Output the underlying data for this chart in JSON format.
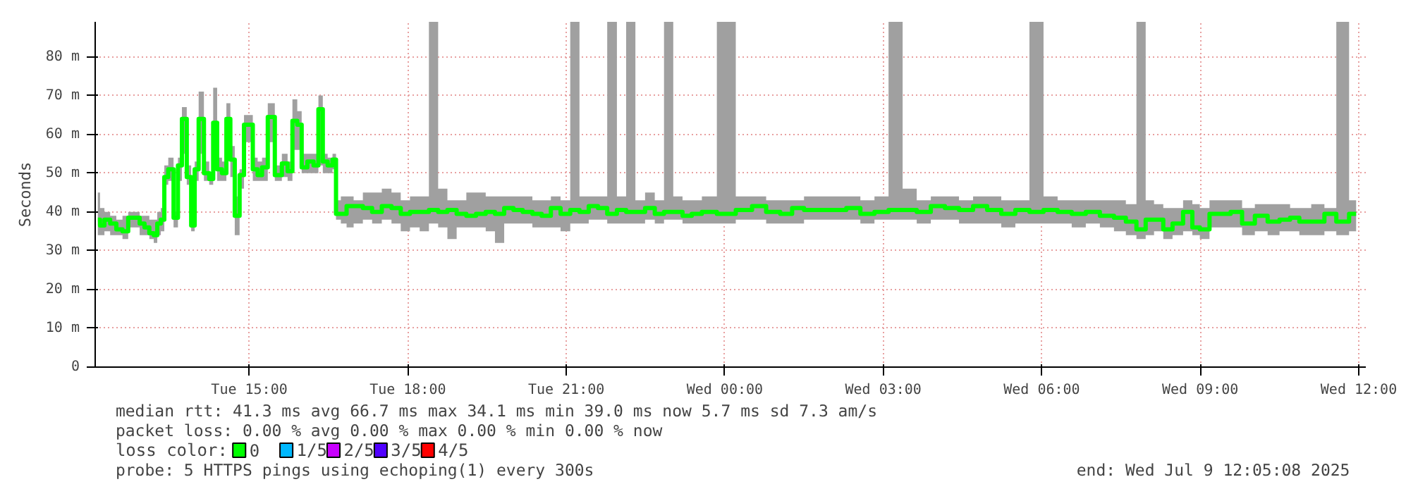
{
  "chart_data": {
    "type": "step",
    "ylabel": "Seconds",
    "xlim": [
      "2025-07-08T12:05",
      "2025-07-09T12:08"
    ],
    "xticks": [
      {
        "value": "2025-07-08T15:00",
        "label": "Tue 15:00"
      },
      {
        "value": "2025-07-08T18:00",
        "label": "Tue 18:00"
      },
      {
        "value": "2025-07-08T21:00",
        "label": "Tue 21:00"
      },
      {
        "value": "2025-07-09T00:00",
        "label": "Wed 00:00"
      },
      {
        "value": "2025-07-09T03:00",
        "label": "Wed 03:00"
      },
      {
        "value": "2025-07-09T06:00",
        "label": "Wed 06:00"
      },
      {
        "value": "2025-07-09T09:00",
        "label": "Wed 09:00"
      },
      {
        "value": "2025-07-09T12:00",
        "label": "Wed 12:00"
      }
    ],
    "ylim": [
      0,
      89
    ],
    "yticks": [
      0,
      {
        "value": 10,
        "label": "10 m"
      },
      {
        "value": 20,
        "label": "20 m"
      },
      {
        "value": 30,
        "label": "30 m"
      },
      {
        "value": 40,
        "label": "40 m"
      },
      {
        "value": 50,
        "label": "50 m"
      },
      {
        "value": 60,
        "label": "60 m"
      },
      {
        "value": 70,
        "label": "70 m"
      },
      {
        "value": 80,
        "label": "80 m"
      }
    ],
    "grid": true,
    "legend": "bottom left",
    "legend_title": "loss color:",
    "annotations": [
      "median rtt:  41.3 ms avg  66.7 ms max  34.1 ms min  39.0 ms now  5.7 ms sd  7.3   am/s",
      "packet loss: 0.00 % avg  0.00 % max  0.00 % min  0.00 % now",
      "probe:       5 HTTPS pings using echoping(1) every 300s",
      "end: Wed Jul  9 12:05:08 2025"
    ],
    "series": [
      {
        "name": "0",
        "color": "#00ff00",
        "x": [
          "2025-07-08T12:08",
          "2025-07-08T12:13",
          "2025-07-08T12:18",
          "2025-07-08T12:26",
          "2025-07-08T12:32",
          "2025-07-08T12:40",
          "2025-07-08T12:45",
          "2025-07-08T12:53",
          "2025-07-08T12:58",
          "2025-07-08T13:04",
          "2025-07-08T13:09",
          "2025-07-08T13:14",
          "2025-07-08T13:17",
          "2025-07-08T13:22",
          "2025-07-08T13:25",
          "2025-07-08T13:31",
          "2025-07-08T13:37",
          "2025-07-08T13:41",
          "2025-07-08T13:46",
          "2025-07-08T13:52",
          "2025-07-08T13:56",
          "2025-07-08T14:00",
          "2025-07-08T14:05",
          "2025-07-08T14:12",
          "2025-07-08T14:17",
          "2025-07-08T14:21",
          "2025-07-08T14:26",
          "2025-07-08T14:32",
          "2025-07-08T14:36",
          "2025-07-08T14:41",
          "2025-07-08T14:46",
          "2025-07-08T14:52",
          "2025-07-08T14:56",
          "2025-07-08T15:01",
          "2025-07-08T15:07",
          "2025-07-08T15:12",
          "2025-07-08T15:17",
          "2025-07-08T15:25",
          "2025-07-08T15:33",
          "2025-07-08T15:41",
          "2025-07-08T15:46",
          "2025-07-08T15:52",
          "2025-07-08T15:57",
          "2025-07-08T16:02",
          "2025-07-08T16:10",
          "2025-07-08T16:16",
          "2025-07-08T16:21",
          "2025-07-08T16:26",
          "2025-07-08T16:32",
          "2025-07-08T16:37",
          "2025-07-08T16:40",
          "2025-07-08T16:48",
          "2025-07-08T16:53",
          "2025-07-08T17:04",
          "2025-07-08T17:14",
          "2025-07-08T17:25",
          "2025-07-08T17:36",
          "2025-07-08T17:47",
          "2025-07-08T17:57",
          "2025-07-08T18:08",
          "2025-07-08T18:19",
          "2025-07-08T18:29",
          "2025-07-08T18:40",
          "2025-07-08T18:50",
          "2025-07-08T19:01",
          "2025-07-08T19:12",
          "2025-07-08T19:23",
          "2025-07-08T19:34",
          "2025-07-08T19:44",
          "2025-07-08T19:55",
          "2025-07-08T20:05",
          "2025-07-08T20:16",
          "2025-07-08T20:27",
          "2025-07-08T20:37",
          "2025-07-08T20:48",
          "2025-07-08T20:59",
          "2025-07-08T21:10",
          "2025-07-08T21:20",
          "2025-07-08T21:31",
          "2025-07-08T21:41",
          "2025-07-08T21:52",
          "2025-07-08T22:03",
          "2025-07-08T22:13",
          "2025-07-08T22:24",
          "2025-07-08T22:35",
          "2025-07-08T22:46",
          "2025-07-08T22:56",
          "2025-07-08T23:07",
          "2025-07-08T23:17",
          "2025-07-08T23:28",
          "2025-07-08T23:40",
          "2025-07-09T00:02",
          "2025-07-09T00:23",
          "2025-07-09T00:39",
          "2025-07-09T00:55",
          "2025-07-09T01:11",
          "2025-07-09T01:22",
          "2025-07-09T01:38",
          "2025-07-09T01:54",
          "2025-07-09T02:10",
          "2025-07-09T02:26",
          "2025-07-09T02:42",
          "2025-07-09T02:58",
          "2025-07-09T03:14",
          "2025-07-09T03:30",
          "2025-07-09T03:46",
          "2025-07-09T04:02",
          "2025-07-09T04:18",
          "2025-07-09T04:34",
          "2025-07-09T04:50",
          "2025-07-09T05:06",
          "2025-07-09T05:22",
          "2025-07-09T05:38",
          "2025-07-09T05:54",
          "2025-07-09T06:10",
          "2025-07-09T06:26",
          "2025-07-09T06:42",
          "2025-07-09T06:58",
          "2025-07-09T07:14",
          "2025-07-09T07:30",
          "2025-07-09T07:41",
          "2025-07-09T07:54",
          "2025-07-09T08:02",
          "2025-07-09T08:13",
          "2025-07-09T08:23",
          "2025-07-09T08:34",
          "2025-07-09T08:47",
          "2025-07-09T08:55",
          "2025-07-09T09:04",
          "2025-07-09T09:17",
          "2025-07-09T09:28",
          "2025-07-09T09:41",
          "2025-07-09T09:54",
          "2025-07-09T10:10",
          "2025-07-09T10:23",
          "2025-07-09T10:37",
          "2025-07-09T10:47",
          "2025-07-09T10:58",
          "2025-07-09T11:14",
          "2025-07-09T11:28",
          "2025-07-09T11:41",
          "2025-07-09T11:57"
        ],
        "values": [
          38,
          36.5,
          38,
          37,
          35.5,
          35,
          38.5,
          38.5,
          37,
          36,
          34.5,
          34,
          37,
          38,
          49,
          51,
          38.5,
          52,
          64,
          49,
          36.5,
          51,
          64,
          50,
          48.5,
          63,
          51,
          50,
          64,
          53.5,
          39,
          49.5,
          62.5,
          62.5,
          51,
          49.5,
          51.5,
          64.5,
          49.5,
          52.5,
          50.5,
          63.5,
          62.5,
          51.5,
          53,
          52,
          66.5,
          53,
          52,
          53.5,
          39.5,
          39.5,
          41.5,
          41.5,
          41,
          40,
          41.5,
          41,
          39.5,
          40,
          40,
          40.5,
          40,
          40.5,
          39.5,
          39,
          39.5,
          40,
          39.5,
          41,
          40.5,
          40,
          39.5,
          39,
          41,
          39.5,
          40.5,
          40,
          41.5,
          41,
          39.5,
          40.5,
          40,
          40,
          41,
          39.5,
          40,
          40,
          39,
          39.5,
          40,
          39.5,
          40.5,
          41.5,
          40,
          39.5,
          41,
          40.5,
          40.5,
          40.5,
          41,
          39.5,
          40,
          40.5,
          40.5,
          40,
          41.5,
          41,
          40.5,
          41.5,
          40.5,
          39.5,
          40.5,
          40,
          40.5,
          40,
          39.5,
          40,
          39,
          38.5,
          37.5,
          35.5,
          38,
          38,
          35.5,
          37,
          40,
          36,
          35.5,
          39.5,
          39.5,
          40,
          37,
          39,
          37.5,
          38,
          38.5,
          37.5,
          37.5,
          39.5,
          37.5,
          39.5
        ],
        "lower": [
          34,
          34,
          35,
          34,
          34,
          33,
          36,
          36,
          34,
          34,
          33,
          32,
          34,
          35,
          47,
          48,
          36,
          48,
          55,
          47,
          35,
          48,
          55,
          48,
          47,
          55,
          48,
          48,
          56,
          49,
          34,
          46,
          58,
          58,
          48,
          48,
          48,
          58,
          48,
          49,
          48,
          56,
          56,
          50,
          50,
          50,
          52,
          50,
          50,
          51,
          38,
          37,
          36,
          37,
          38,
          37,
          38,
          37,
          35,
          36,
          35,
          37,
          36,
          33,
          36,
          36,
          36,
          35,
          32,
          37,
          37,
          37,
          36,
          36,
          36,
          35,
          37,
          37,
          38,
          38,
          37,
          37,
          37,
          37,
          38,
          37,
          38,
          38,
          37,
          37,
          37,
          37,
          38,
          38,
          37,
          37,
          37,
          38,
          38,
          38,
          38,
          37,
          38,
          38,
          38,
          37,
          38,
          38,
          37,
          37,
          37,
          36,
          37,
          37,
          37,
          37,
          36,
          37,
          36,
          35,
          34,
          33,
          34,
          35,
          33,
          34,
          35,
          34,
          33,
          36,
          36,
          36,
          34,
          35,
          34,
          35,
          35,
          34,
          34,
          35,
          34,
          35
        ],
        "upper": [
          45,
          41,
          40,
          39,
          38,
          39,
          40,
          40,
          39,
          39,
          38,
          38,
          40,
          41,
          52,
          54,
          40,
          54,
          67,
          52,
          40,
          53,
          71,
          53,
          50,
          72,
          54,
          53,
          68,
          57,
          44,
          51,
          65,
          65,
          54,
          53,
          54,
          68,
          52,
          55,
          53,
          69,
          66,
          55,
          55,
          55,
          70,
          55,
          54,
          55,
          43,
          44,
          44,
          43,
          45,
          45,
          46,
          45,
          43,
          44,
          44,
          89,
          46,
          43,
          43,
          45,
          45,
          44,
          44,
          44,
          44,
          44,
          43,
          43,
          44,
          43,
          89,
          44,
          44,
          44,
          89,
          44,
          89,
          43,
          45,
          43,
          89,
          44,
          43,
          43,
          44,
          89,
          44,
          44,
          43,
          43,
          43,
          44,
          44,
          44,
          44,
          43,
          44,
          89,
          46,
          43,
          44,
          44,
          43,
          44,
          44,
          43,
          43,
          89,
          44,
          43,
          43,
          43,
          43,
          43,
          42,
          89,
          43,
          42,
          41,
          41,
          43,
          42,
          41,
          43,
          43,
          43,
          41,
          42,
          42,
          42,
          41,
          41,
          42,
          41,
          89,
          43
        ]
      },
      {
        "name": "1/5",
        "color": "#00b8ff"
      },
      {
        "name": "2/5",
        "color": "#c800ff"
      },
      {
        "name": "3/5",
        "color": "#5000ff"
      },
      {
        "name": "4/5",
        "color": "#ff0000"
      }
    ]
  }
}
